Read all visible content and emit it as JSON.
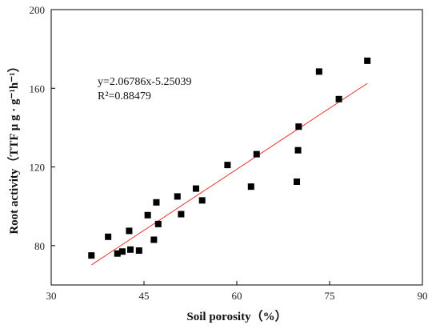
{
  "chart_data": {
    "type": "scatter",
    "xlabel": "Soil porosity（%）",
    "ylabel": "Root activity（TTF μ g · g⁻¹h⁻¹）",
    "xlim": [
      30,
      90
    ],
    "ylim": [
      60,
      200
    ],
    "xticks": [
      30,
      45,
      60,
      75,
      90
    ],
    "yticks": [
      80,
      120,
      160,
      200
    ],
    "grid": false,
    "equation": "y=2.06786x-5.25039",
    "r_squared": "R²=0.88479",
    "points": {
      "x": [
        36.5,
        39.2,
        40.7,
        41.5,
        42.6,
        42.8,
        44.2,
        45.6,
        46.6,
        47.0,
        47.3,
        50.4,
        51.0,
        53.4,
        54.4,
        58.5,
        62.3,
        63.2,
        69.7,
        69.9,
        70.0,
        73.3,
        76.5,
        81.1
      ],
      "y": [
        75,
        84.5,
        76,
        77,
        87.5,
        78,
        77.5,
        95.5,
        83,
        102,
        91,
        105,
        96,
        109,
        103,
        121,
        110,
        126.5,
        112.5,
        128.5,
        140.5,
        168.5,
        154.5,
        174
      ]
    },
    "fit": {
      "x": [
        36.5,
        81.1
      ],
      "y": [
        70.2,
        162.5
      ],
      "color": "#e8312a"
    },
    "marker_color": "#000000"
  }
}
